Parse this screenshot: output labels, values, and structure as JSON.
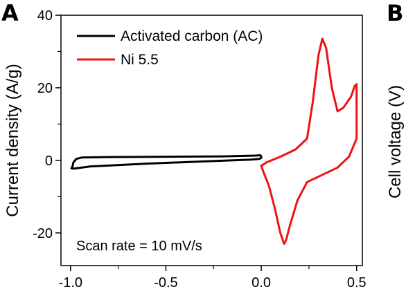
{
  "panels": {
    "left_letter": "A",
    "right_letter": "B"
  },
  "right_axis_label": "Cell voltage (V)",
  "chart_data": {
    "type": "line",
    "title": "",
    "xlabel": "",
    "ylabel": "Current density (A/g)",
    "xlim": [
      -1.05,
      0.53
    ],
    "ylim": [
      -29,
      40
    ],
    "x_ticks": [
      -1.0,
      -0.5,
      0.0,
      0.5
    ],
    "x_tick_labels": [
      "-1.0",
      "-0.5",
      "0.0",
      "0.5"
    ],
    "y_ticks": [
      40,
      20,
      0,
      -20
    ],
    "y_tick_labels": [
      "40",
      "20",
      "0",
      "-20"
    ],
    "grid": false,
    "legend_position": "top-left",
    "annotation": "Scan rate = 10 mV/s",
    "series": [
      {
        "name": "Activated carbon (AC)",
        "color": "#000000",
        "x": [
          -0.99,
          -0.985,
          -0.97,
          -0.94,
          -0.8,
          -0.5,
          -0.2,
          -0.03,
          -0.005,
          0.0,
          0.0,
          -0.01,
          -0.05,
          -0.3,
          -0.6,
          -0.9,
          -0.985,
          -0.995,
          -0.99
        ],
        "y": [
          -1.8,
          -0.6,
          0.4,
          0.8,
          0.9,
          1.0,
          1.1,
          1.3,
          1.4,
          1.1,
          0.7,
          0.4,
          0.2,
          -0.3,
          -0.9,
          -1.7,
          -2.3,
          -2.2,
          -1.8
        ]
      },
      {
        "name": "Ni 5.5",
        "color": "#ee1111",
        "x": [
          0.0,
          0.03,
          0.1,
          0.18,
          0.24,
          0.27,
          0.3,
          0.32,
          0.34,
          0.37,
          0.4,
          0.43,
          0.47,
          0.49,
          0.5,
          0.5,
          0.46,
          0.4,
          0.32,
          0.24,
          0.19,
          0.15,
          0.13,
          0.12,
          0.1,
          0.07,
          0.04,
          0.01,
          0.0
        ],
        "y": [
          -1.5,
          -0.5,
          1.0,
          3.0,
          6.0,
          16.0,
          29.0,
          33.5,
          31.0,
          20.0,
          13.5,
          14.5,
          17.5,
          20.5,
          21.0,
          6.0,
          1.0,
          -2.0,
          -4.0,
          -6.0,
          -11.0,
          -18.0,
          -22.0,
          -23.0,
          -20.0,
          -13.0,
          -7.0,
          -3.0,
          -1.5
        ]
      }
    ]
  }
}
